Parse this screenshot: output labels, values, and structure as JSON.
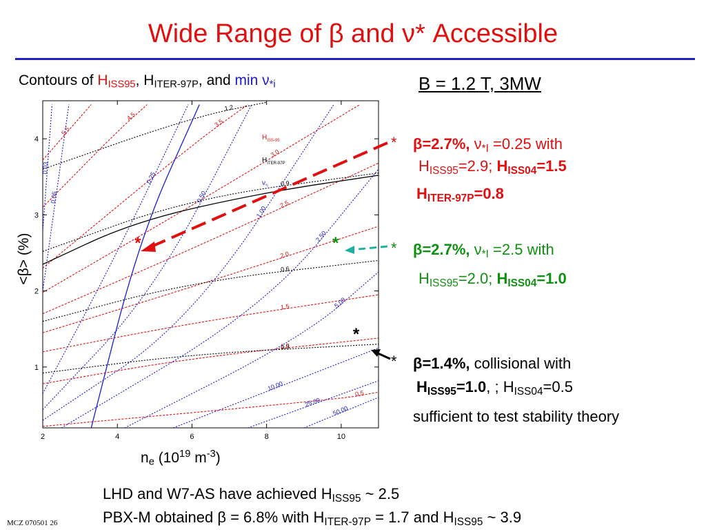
{
  "title": {
    "pre": "Wide Range of ",
    "beta": "β",
    "mid": " and ",
    "nu": "ν",
    "post": "* Accessible"
  },
  "chart_heading": {
    "pre": "Contours of ",
    "h1": "H",
    "h1_sub": "ISS95",
    "sep1": ", H",
    "h2_sub": "ITER-97P",
    "sep2": ", and ",
    "min": "min ",
    "nu": "ν",
    "nu_sub": "*i"
  },
  "conditions": "B = 1.2 T,  3MW",
  "annotations": [
    {
      "marker": "*",
      "l1": {
        "beta": "β",
        "val": "=2.7%,",
        "nu": " ν",
        "nu_sub": "*I",
        "rest": " =0.25 with"
      },
      "l2": {
        "h": "H",
        "h_sub": "ISS95",
        "hval": "=2.9;",
        "h2": " H",
        "h2_sub": "ISS04",
        "h2val": "=1.5"
      },
      "l3": {
        "h": "H",
        "h_sub": "ITER-97P",
        "hval": "=0.8"
      }
    },
    {
      "marker": "*",
      "l1": {
        "beta": "β",
        "val": "=2.7%,",
        "nu": " ν",
        "nu_sub": "*I",
        "rest": " =2.5 with"
      },
      "l2": {
        "h": "H",
        "h_sub": "ISS95",
        "hval": "=2.0;",
        "h2": " H",
        "h2_sub": "ISS04",
        "h2val": "=1.0"
      }
    },
    {
      "marker": "*",
      "l1": {
        "beta": "β",
        "val": "=1.4%,",
        "rest": " collisional with"
      },
      "l2": {
        "h": "H",
        "h_sub": "ISS95",
        "hval": "=1.0",
        "mid": ", ; H",
        "h2_sub": "ISS04",
        "h2val": "=0.5"
      },
      "l3": "sufficient to test stability theory"
    }
  ],
  "bottom": {
    "line1": {
      "pre": "LHD and W7-AS have achieved H",
      "sub": "ISS95",
      "post": " ~ 2.5"
    },
    "line2": {
      "pre": "PBX-M obtained ",
      "beta": "β",
      "mid": " = 6.8% with H",
      "sub1": "ITER-97P",
      "mid2": " = 1.7 and H",
      "sub2": "ISS95",
      "post": " ~ 3.9"
    }
  },
  "footer": "MCZ 070501  26",
  "chart_data": {
    "type": "line",
    "xlabel": {
      "main": "n",
      "sub": "e",
      "unit_pre": "  (10",
      "unit_sup": "19",
      "unit_mid": " m",
      "unit_sup2": "-3",
      "unit_post": ")"
    },
    "ylabel": {
      "b_open": "<",
      "beta": "β",
      "b_close": ">",
      "unit": "  (%)"
    },
    "xlim": [
      2,
      11
    ],
    "ylim": [
      0.2,
      4.5
    ],
    "x_ticks": [
      2,
      4,
      6,
      8,
      10
    ],
    "y_ticks": [
      1,
      2,
      3,
      4
    ],
    "legend": {
      "position": "top-center",
      "entries": [
        {
          "label": "H",
          "sub": "ISS-95",
          "color": "#e01010"
        },
        {
          "label": "H",
          "sub": "ITER-97P",
          "color": "#000000"
        },
        {
          "label": "ν",
          "sub": "*i",
          "color": "#1a1ad0"
        }
      ]
    },
    "series": [
      {
        "name": "H_ISS95",
        "color": "#e01010",
        "dash": "3,2",
        "levels": [
          {
            "label": "0.5",
            "points": [
              [
                2.0,
                0.22
              ],
              [
                10.0,
                0.58
              ],
              [
                11.0,
                0.67
              ]
            ]
          },
          {
            "label": "1.0",
            "points": [
              [
                2.0,
                0.78
              ],
              [
                6.0,
                1.12
              ],
              [
                11.0,
                1.38
              ]
            ]
          },
          {
            "label": "1.5",
            "points": [
              [
                2.0,
                1.2
              ],
              [
                6.0,
                1.58
              ],
              [
                11.0,
                1.95
              ]
            ]
          },
          {
            "label": "2.0",
            "points": [
              [
                2.0,
                1.45
              ],
              [
                6.0,
                2.05
              ],
              [
                11.0,
                2.85
              ]
            ]
          },
          {
            "label": "2.5",
            "points": [
              [
                2.0,
                1.7
              ],
              [
                6.0,
                2.55
              ],
              [
                11.0,
                3.68
              ]
            ]
          },
          {
            "label": "3.0",
            "points": [
              [
                2.0,
                1.98
              ],
              [
                6.0,
                3.12
              ],
              [
                10.5,
                4.45
              ]
            ]
          },
          {
            "label": "3.5",
            "points": [
              [
                2.0,
                2.3
              ],
              [
                6.0,
                3.92
              ],
              [
                7.5,
                4.45
              ]
            ]
          },
          {
            "label": "4.5",
            "points": [
              [
                2.0,
                3.1
              ],
              [
                4.0,
                4.1
              ],
              [
                4.8,
                4.45
              ]
            ]
          },
          {
            "label": "5.5",
            "points": [
              [
                2.0,
                3.72
              ],
              [
                3.3,
                4.45
              ]
            ]
          }
        ]
      },
      {
        "name": "H_ITER-97P",
        "color": "#000000",
        "dash": "2,2",
        "levels": [
          {
            "label": "0.3",
            "points": [
              [
                2.0,
                0.92
              ],
              [
                6.0,
                1.17
              ],
              [
                11.0,
                1.3
              ]
            ]
          },
          {
            "label": "0.6",
            "points": [
              [
                2.0,
                1.6
              ],
              [
                6.0,
                2.12
              ],
              [
                11.0,
                2.4
              ]
            ]
          },
          {
            "label": "0.9",
            "points": [
              [
                2.0,
                2.52
              ],
              [
                6.0,
                3.22
              ],
              [
                11.0,
                3.55
              ]
            ]
          },
          {
            "label": "1.2",
            "points": [
              [
                2.0,
                3.6
              ],
              [
                6.0,
                4.28
              ],
              [
                8.0,
                4.48
              ]
            ]
          }
        ]
      },
      {
        "name": "nu*i",
        "color": "#1a1ad0",
        "dash": "2,2",
        "levels": [
          {
            "label": "0.03",
            "points": [
              [
                2.0,
                2.78
              ],
              [
                2.25,
                4.45
              ]
            ]
          },
          {
            "label": "0.05",
            "points": [
              [
                2.0,
                2.0
              ],
              [
                2.7,
                4.45
              ]
            ]
          },
          {
            "label": "0.25",
            "points": [
              [
                2.0,
                0.65
              ],
              [
                4.0,
                2.5
              ],
              [
                5.9,
                4.45
              ]
            ]
          },
          {
            "label": "0.50",
            "points": [
              [
                2.0,
                0.44
              ],
              [
                5.0,
                2.0
              ],
              [
                7.6,
                4.45
              ]
            ]
          },
          {
            "label": "1.00",
            "points": [
              [
                2.0,
                0.3
              ],
              [
                6.0,
                1.6
              ],
              [
                9.8,
                4.45
              ]
            ]
          },
          {
            "label": "2.50",
            "points": [
              [
                2.5,
                0.2
              ],
              [
                8.0,
                1.8
              ],
              [
                11.0,
                3.6
              ]
            ]
          },
          {
            "label": "5.00",
            "points": [
              [
                4.2,
                0.2
              ],
              [
                9.0,
                1.4
              ],
              [
                11.0,
                2.25
              ]
            ]
          },
          {
            "label": "10.00",
            "points": [
              [
                5.5,
                0.2
              ],
              [
                11.0,
                1.25
              ]
            ]
          },
          {
            "label": "25.00",
            "points": [
              [
                7.5,
                0.2
              ],
              [
                11.0,
                0.82
              ]
            ]
          },
          {
            "label": "50.00",
            "points": [
              [
                9.0,
                0.2
              ],
              [
                11.0,
                0.6
              ]
            ]
          }
        ]
      },
      {
        "name": "H_ITER-97P 0.9 (solid)",
        "color": "#000000",
        "dash": "",
        "levels": [
          {
            "label": "",
            "points": [
              [
                2.0,
                2.35
              ],
              [
                4.5,
                2.92
              ],
              [
                8.0,
                3.3
              ],
              [
                11.0,
                3.52
              ]
            ]
          }
        ]
      },
      {
        "name": "nu*i 0.25 (solid)",
        "color": "#1a1ad0",
        "dash": "",
        "levels": [
          {
            "label": "",
            "points": [
              [
                3.3,
                0.2
              ],
              [
                4.6,
                2.7
              ],
              [
                6.2,
                4.45
              ]
            ]
          }
        ]
      }
    ],
    "marked_points": [
      {
        "x": 4.55,
        "y": 2.65,
        "color": "#e01010"
      },
      {
        "x": 9.85,
        "y": 2.65,
        "color": "#109010"
      },
      {
        "x": 10.4,
        "y": 1.45,
        "color": "#000000"
      }
    ]
  }
}
